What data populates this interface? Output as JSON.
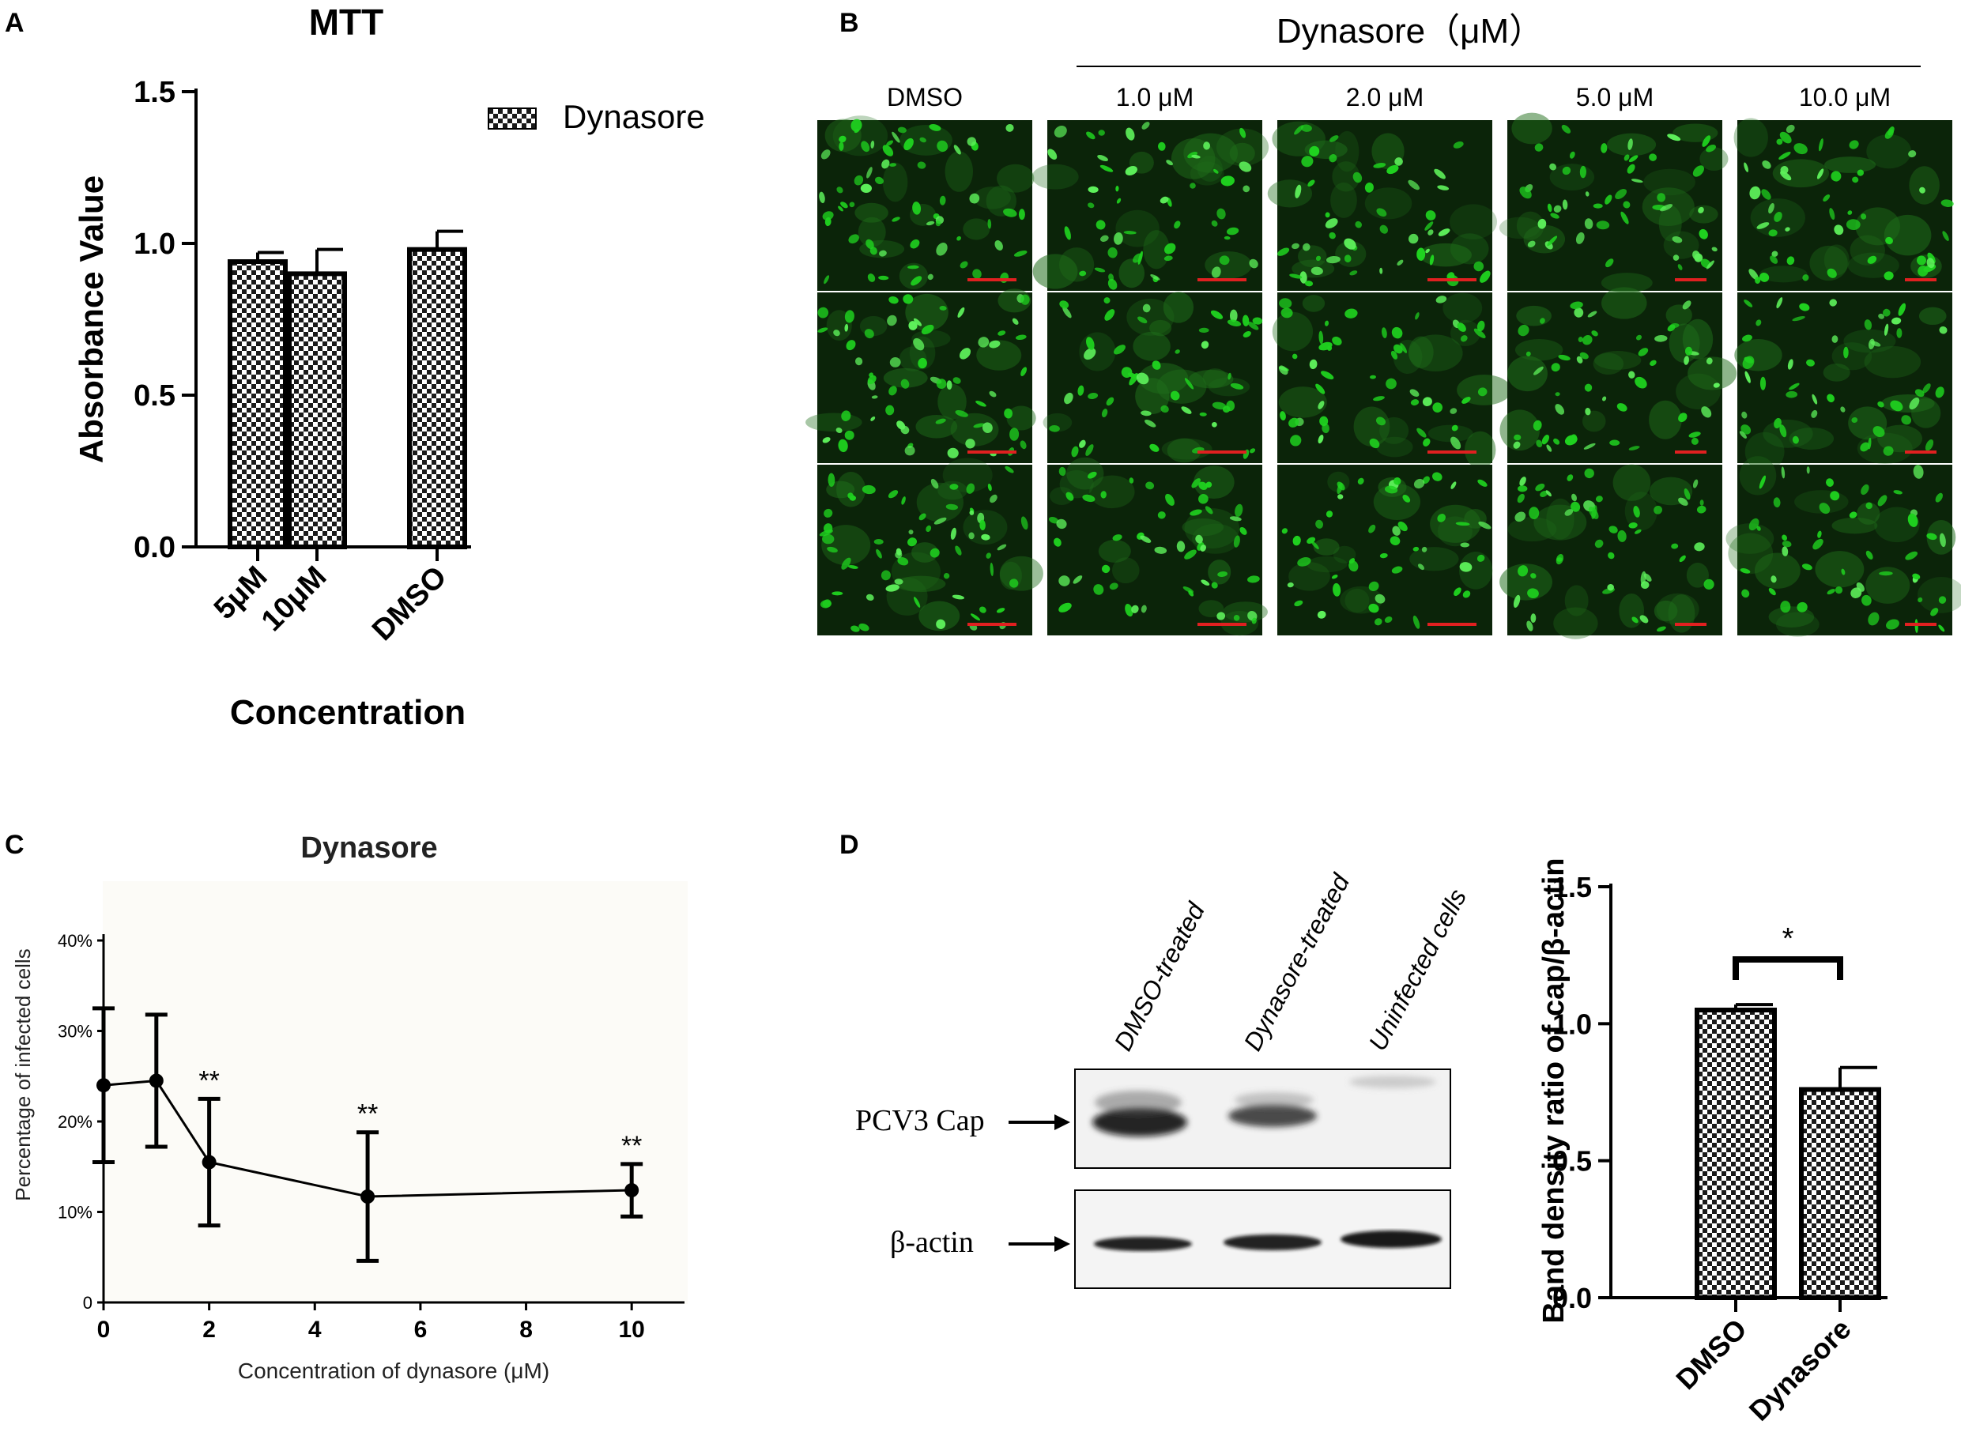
{
  "panel_letters": {
    "a": "A",
    "b": "B",
    "c": "C",
    "d": "D"
  },
  "panel_a": {
    "chart_data": {
      "type": "bar",
      "title": "MTT",
      "xlabel": "Concentration",
      "ylabel": "Absorbance Value",
      "legend": [
        "Dynasore"
      ],
      "legend_position": "top-right",
      "categories": [
        "5μM",
        "10μM",
        "DMSO"
      ],
      "values": [
        0.94,
        0.9,
        0.98
      ],
      "errors": [
        0.03,
        0.08,
        0.06
      ],
      "ylim": [
        0,
        1.5
      ],
      "yticks": [
        "0.0",
        "0.5",
        "1.0",
        "1.5"
      ],
      "pattern": "checkerboard"
    }
  },
  "panel_b": {
    "header": "Dynasore（μM）",
    "columns": [
      "DMSO",
      "1.0 μM",
      "2.0 μM",
      "5.0 μM",
      "10.0 μM"
    ],
    "rows": 3,
    "image_color": "#1fd21f",
    "scalebar_color": "#e02020"
  },
  "panel_c": {
    "chart_data": {
      "type": "line",
      "title": "Dynasore",
      "xlabel": "Concentration of dynasore (μM)",
      "ylabel": "Percentage of infected cells",
      "x": [
        0,
        1,
        2,
        5,
        10
      ],
      "y": [
        24,
        24.5,
        15.5,
        11.7,
        12.4
      ],
      "errors": [
        8.5,
        7.3,
        7,
        7.1,
        2.9
      ],
      "significance": [
        "",
        "",
        "**",
        "**",
        "**"
      ],
      "xlim": [
        0,
        11
      ],
      "ylim": [
        0,
        40
      ],
      "xticks": [
        "0",
        "2",
        "4",
        "6",
        "8",
        "10"
      ],
      "yticks": [
        "0",
        "10%",
        "20%",
        "30%",
        "40%"
      ]
    }
  },
  "panel_d": {
    "blot": {
      "lanes": [
        "DMSO-treated",
        "Dynasore-treated",
        "Uninfected cells"
      ],
      "labels": [
        "PCV3 Cap",
        "β-actin"
      ]
    },
    "chart_data": {
      "type": "bar",
      "ylabel": "Band density ratio of cap/β-actin",
      "categories": [
        "DMSO",
        "Dynasore"
      ],
      "values": [
        1.05,
        0.76
      ],
      "errors": [
        0.02,
        0.08
      ],
      "significance": "*",
      "ylim": [
        0,
        1.5
      ],
      "yticks": [
        "0.0",
        "0.5",
        "1.0",
        "1.5"
      ],
      "pattern": "checkerboard"
    }
  }
}
